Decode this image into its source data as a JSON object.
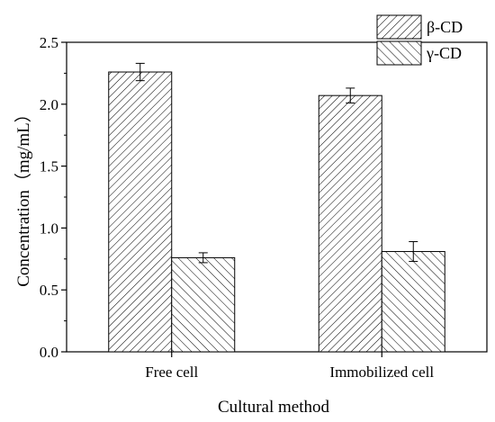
{
  "chart_data": {
    "type": "bar",
    "title": "",
    "xlabel": "Cultural method",
    "ylabel": "Concentration（mg/mL）",
    "categories": [
      "Free cell",
      "Immobilized cell"
    ],
    "series": [
      {
        "name": "β-CD",
        "values": [
          2.26,
          2.07
        ],
        "errors": [
          0.07,
          0.06
        ],
        "pattern": "back-diagonal"
      },
      {
        "name": "γ-CD",
        "values": [
          0.76,
          0.81
        ],
        "errors": [
          0.04,
          0.08
        ],
        "pattern": "forward-diagonal"
      }
    ],
    "ylim": [
      0,
      2.5
    ],
    "yticks": [
      "0.0",
      "0.5",
      "1.0",
      "1.5",
      "2.0",
      "2.5"
    ],
    "grid": false,
    "legend_position": "top-right",
    "colors": {
      "bar_fill": "#ffffff",
      "stroke": "#000000"
    }
  }
}
